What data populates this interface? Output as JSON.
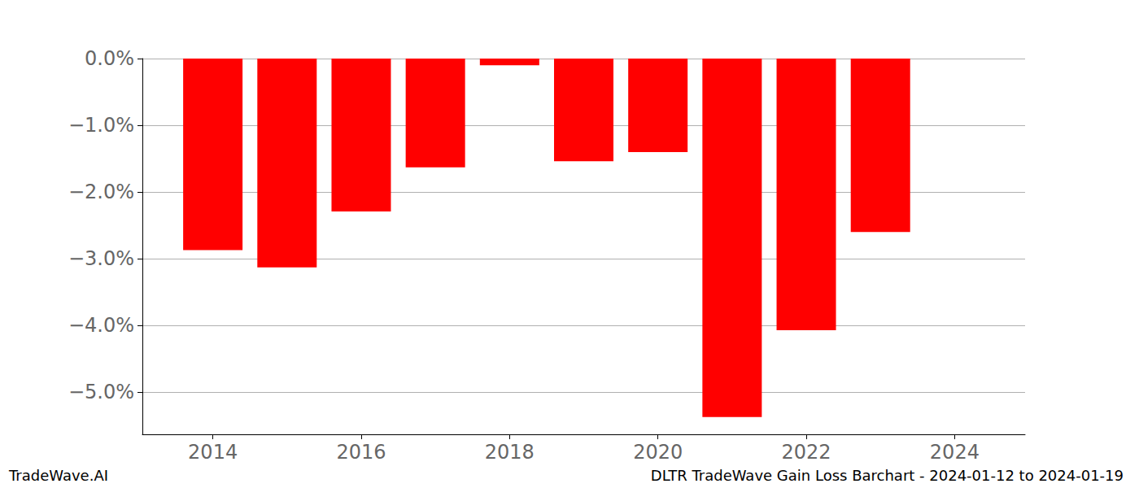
{
  "chart_data": {
    "type": "bar",
    "title": "DLTR TradeWave Gain Loss Barchart - 2024-01-12 to 2024-01-19",
    "annotations": [
      "TradeWave.AI"
    ],
    "x": [
      2014,
      2015,
      2016,
      2017,
      2018,
      2019,
      2020,
      2021,
      2022,
      2023
    ],
    "values": [
      -2.87,
      -3.13,
      -2.29,
      -1.63,
      -0.1,
      -1.54,
      -1.4,
      -5.37,
      -4.07,
      -2.6
    ],
    "color": "#ff0000",
    "xlim": [
      2013.05,
      2024.95
    ],
    "xticks": [
      2014,
      2016,
      2018,
      2020,
      2022,
      2024
    ],
    "ylim": [
      -5.63,
      0
    ],
    "yticks": [
      {
        "value": -5,
        "label": "−5.0%"
      },
      {
        "value": -4,
        "label": "−4.0%"
      },
      {
        "value": -3,
        "label": "−3.0%"
      },
      {
        "value": -2,
        "label": "−2.0%"
      },
      {
        "value": -1,
        "label": "−1.0%"
      },
      {
        "value": 0,
        "label": "0.0%"
      }
    ],
    "grid": true
  }
}
